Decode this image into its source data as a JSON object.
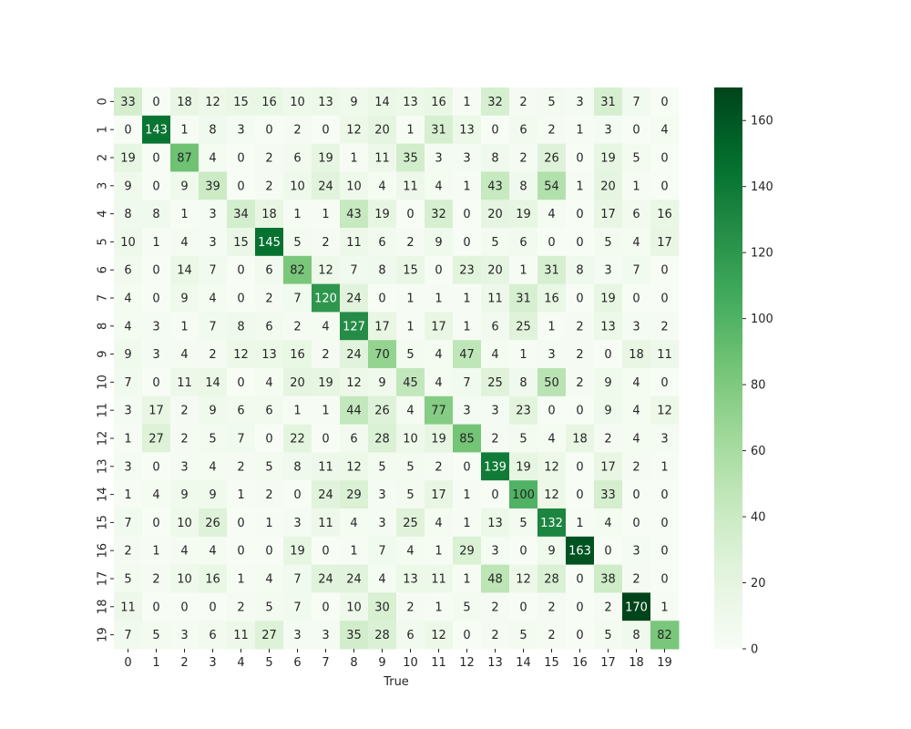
{
  "chart_data": {
    "type": "heatmap",
    "title": "",
    "xlabel": "True",
    "ylabel": "",
    "x_categories": [
      "0",
      "1",
      "2",
      "3",
      "4",
      "5",
      "6",
      "7",
      "8",
      "9",
      "10",
      "11",
      "12",
      "13",
      "14",
      "15",
      "16",
      "17",
      "18",
      "19"
    ],
    "y_categories": [
      "0",
      "1",
      "2",
      "3",
      "4",
      "5",
      "6",
      "7",
      "8",
      "9",
      "10",
      "11",
      "12",
      "13",
      "14",
      "15",
      "16",
      "17",
      "18",
      "19"
    ],
    "values": [
      [
        33,
        0,
        18,
        12,
        15,
        16,
        10,
        13,
        9,
        14,
        13,
        16,
        1,
        32,
        2,
        5,
        3,
        31,
        7,
        0
      ],
      [
        0,
        143,
        1,
        8,
        3,
        0,
        2,
        0,
        12,
        20,
        1,
        31,
        13,
        0,
        6,
        2,
        1,
        3,
        0,
        4
      ],
      [
        19,
        0,
        87,
        4,
        0,
        2,
        6,
        19,
        1,
        11,
        35,
        3,
        3,
        8,
        2,
        26,
        0,
        19,
        5,
        0
      ],
      [
        9,
        0,
        9,
        39,
        0,
        2,
        10,
        24,
        10,
        4,
        11,
        4,
        1,
        43,
        8,
        54,
        1,
        20,
        1,
        0
      ],
      [
        8,
        8,
        1,
        3,
        34,
        18,
        1,
        1,
        43,
        19,
        0,
        32,
        0,
        20,
        19,
        4,
        0,
        17,
        6,
        16
      ],
      [
        10,
        1,
        4,
        3,
        15,
        145,
        5,
        2,
        11,
        6,
        2,
        9,
        0,
        5,
        6,
        0,
        0,
        5,
        4,
        17
      ],
      [
        6,
        0,
        14,
        7,
        0,
        6,
        82,
        12,
        7,
        8,
        15,
        0,
        23,
        20,
        1,
        31,
        8,
        3,
        7,
        0
      ],
      [
        4,
        0,
        9,
        4,
        0,
        2,
        7,
        120,
        24,
        0,
        1,
        1,
        1,
        11,
        31,
        16,
        0,
        19,
        0,
        0
      ],
      [
        4,
        3,
        1,
        7,
        8,
        6,
        2,
        4,
        127,
        17,
        1,
        17,
        1,
        6,
        25,
        1,
        2,
        13,
        3,
        2
      ],
      [
        9,
        3,
        4,
        2,
        12,
        13,
        16,
        2,
        24,
        70,
        5,
        4,
        47,
        4,
        1,
        3,
        2,
        0,
        18,
        11
      ],
      [
        7,
        0,
        11,
        14,
        0,
        4,
        20,
        19,
        12,
        9,
        45,
        4,
        7,
        25,
        8,
        50,
        2,
        9,
        4,
        0
      ],
      [
        3,
        17,
        2,
        9,
        6,
        6,
        1,
        1,
        44,
        26,
        4,
        77,
        3,
        3,
        23,
        0,
        0,
        9,
        4,
        12
      ],
      [
        1,
        27,
        2,
        5,
        7,
        0,
        22,
        0,
        6,
        28,
        10,
        19,
        85,
        2,
        5,
        4,
        18,
        2,
        4,
        3
      ],
      [
        3,
        0,
        3,
        4,
        2,
        5,
        8,
        11,
        12,
        5,
        5,
        2,
        0,
        139,
        19,
        12,
        0,
        17,
        2,
        1
      ],
      [
        1,
        4,
        9,
        9,
        1,
        2,
        0,
        24,
        29,
        3,
        5,
        17,
        1,
        0,
        100,
        12,
        0,
        33,
        0,
        0
      ],
      [
        7,
        0,
        10,
        26,
        0,
        1,
        3,
        11,
        4,
        3,
        25,
        4,
        1,
        13,
        5,
        132,
        1,
        4,
        0,
        0
      ],
      [
        2,
        1,
        4,
        4,
        0,
        0,
        19,
        0,
        1,
        7,
        4,
        1,
        29,
        3,
        0,
        9,
        163,
        0,
        3,
        0
      ],
      [
        5,
        2,
        10,
        16,
        1,
        4,
        7,
        24,
        24,
        4,
        13,
        11,
        1,
        48,
        12,
        28,
        0,
        38,
        2,
        0
      ],
      [
        11,
        0,
        0,
        0,
        2,
        5,
        7,
        0,
        10,
        30,
        2,
        1,
        5,
        2,
        0,
        2,
        0,
        2,
        170,
        1
      ],
      [
        7,
        5,
        3,
        6,
        11,
        27,
        3,
        3,
        35,
        28,
        6,
        12,
        0,
        2,
        5,
        2,
        0,
        5,
        8,
        82
      ]
    ],
    "colorbar": {
      "min": 0,
      "max": 170,
      "ticks": [
        "0",
        "20",
        "40",
        "60",
        "80",
        "100",
        "120",
        "140",
        "160"
      ],
      "colormap": "Greens"
    },
    "grid": false,
    "legend": "colorbar-right"
  }
}
